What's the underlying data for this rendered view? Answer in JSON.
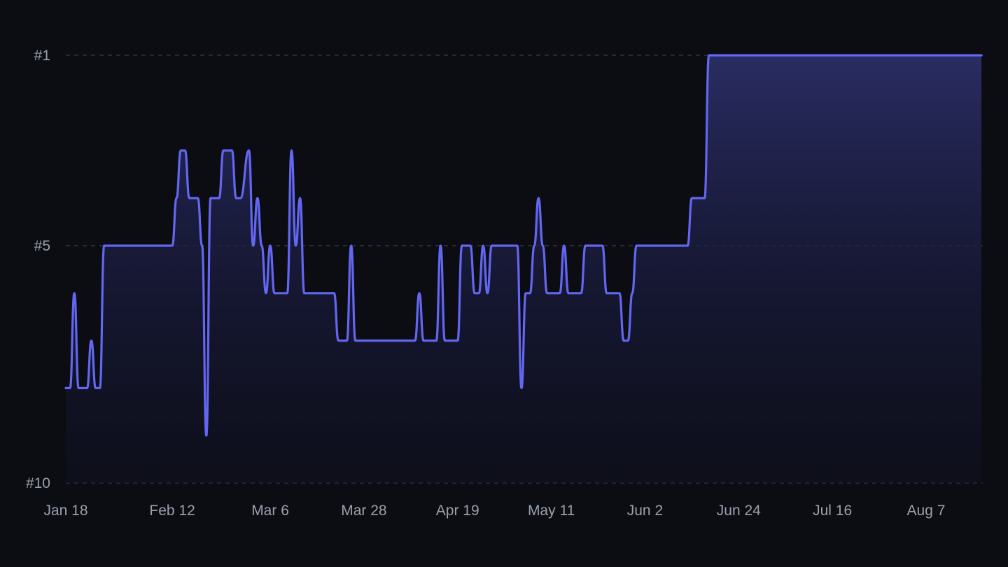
{
  "chart_data": {
    "type": "line",
    "title": "",
    "xlabel": "",
    "ylabel": "",
    "y_scale": "rank (inverted, #1 at top)",
    "ylim": [
      1,
      10
    ],
    "y_ticks": [
      "#1",
      "#5",
      "#10"
    ],
    "y_tick_values": [
      1,
      5,
      10
    ],
    "x_ticks": [
      "Jan 18",
      "Feb 12",
      "Mar 6",
      "Mar 28",
      "Apr 19",
      "May 11",
      "Jun 2",
      "Jun 24",
      "Jul 16",
      "Aug 7"
    ],
    "grid": "horizontal dashed",
    "legend": "none",
    "colors": {
      "line": "#6366f1",
      "fill_top": "#2b2e66",
      "background": "#0b0d13",
      "grid": "#3a3d47",
      "tick_text": "#9aa0ab"
    },
    "series": [
      {
        "points": [
          [
            "Jan 18",
            8
          ],
          [
            "Jan 19",
            8
          ],
          [
            "Jan 20",
            6
          ],
          [
            "Jan 21",
            8
          ],
          [
            "Jan 22",
            8
          ],
          [
            "Jan 23",
            8
          ],
          [
            "Jan 24",
            7
          ],
          [
            "Jan 25",
            8
          ],
          [
            "Jan 26",
            8
          ],
          [
            "Jan 27",
            5
          ],
          [
            "Jan 28",
            5
          ],
          [
            "Jan 29",
            5
          ],
          [
            "Jan 30",
            5
          ],
          [
            "Jan 31",
            5
          ],
          [
            "Feb 1",
            5
          ],
          [
            "Feb 2",
            5
          ],
          [
            "Feb 3",
            5
          ],
          [
            "Feb 4",
            5
          ],
          [
            "Feb 5",
            5
          ],
          [
            "Feb 6",
            5
          ],
          [
            "Feb 7",
            5
          ],
          [
            "Feb 8",
            5
          ],
          [
            "Feb 9",
            5
          ],
          [
            "Feb 10",
            5
          ],
          [
            "Feb 11",
            5
          ],
          [
            "Feb 12",
            5
          ],
          [
            "Feb 13",
            4
          ],
          [
            "Feb 14",
            3
          ],
          [
            "Feb 15",
            3
          ],
          [
            "Feb 16",
            4
          ],
          [
            "Feb 17",
            4
          ],
          [
            "Feb 18",
            4
          ],
          [
            "Feb 19",
            5
          ],
          [
            "Feb 20",
            9
          ],
          [
            "Feb 21",
            4
          ],
          [
            "Feb 22",
            4
          ],
          [
            "Feb 23",
            4
          ],
          [
            "Feb 24",
            3
          ],
          [
            "Feb 25",
            3
          ],
          [
            "Feb 26",
            3
          ],
          [
            "Feb 27",
            4
          ],
          [
            "Feb 28",
            4
          ],
          [
            "Mar 1",
            3
          ],
          [
            "Mar 2",
            5
          ],
          [
            "Mar 3",
            4
          ],
          [
            "Mar 4",
            5
          ],
          [
            "Mar 5",
            6
          ],
          [
            "Mar 6",
            5
          ],
          [
            "Mar 7",
            6
          ],
          [
            "Mar 8",
            6
          ],
          [
            "Mar 9",
            6
          ],
          [
            "Mar 10",
            6
          ],
          [
            "Mar 11",
            3
          ],
          [
            "Mar 12",
            5
          ],
          [
            "Mar 13",
            4
          ],
          [
            "Mar 14",
            6
          ],
          [
            "Mar 15",
            6
          ],
          [
            "Mar 16",
            6
          ],
          [
            "Mar 17",
            6
          ],
          [
            "Mar 18",
            6
          ],
          [
            "Mar 19",
            6
          ],
          [
            "Mar 20",
            6
          ],
          [
            "Mar 21",
            6
          ],
          [
            "Mar 22",
            7
          ],
          [
            "Mar 23",
            7
          ],
          [
            "Mar 24",
            7
          ],
          [
            "Mar 25",
            5
          ],
          [
            "Mar 26",
            7
          ],
          [
            "Mar 27",
            7
          ],
          [
            "Mar 28",
            7
          ],
          [
            "Mar 29",
            7
          ],
          [
            "Mar 30",
            7
          ],
          [
            "Mar 31",
            7
          ],
          [
            "Apr 1",
            7
          ],
          [
            "Apr 2",
            7
          ],
          [
            "Apr 3",
            7
          ],
          [
            "Apr 4",
            7
          ],
          [
            "Apr 5",
            7
          ],
          [
            "Apr 6",
            7
          ],
          [
            "Apr 7",
            7
          ],
          [
            "Apr 8",
            7
          ],
          [
            "Apr 9",
            7
          ],
          [
            "Apr 10",
            6
          ],
          [
            "Apr 11",
            7
          ],
          [
            "Apr 12",
            7
          ],
          [
            "Apr 13",
            7
          ],
          [
            "Apr 14",
            7
          ],
          [
            "Apr 15",
            5
          ],
          [
            "Apr 16",
            7
          ],
          [
            "Apr 17",
            7
          ],
          [
            "Apr 18",
            7
          ],
          [
            "Apr 19",
            7
          ],
          [
            "Apr 20",
            5
          ],
          [
            "Apr 21",
            5
          ],
          [
            "Apr 22",
            5
          ],
          [
            "Apr 23",
            6
          ],
          [
            "Apr 24",
            6
          ],
          [
            "Apr 25",
            5
          ],
          [
            "Apr 26",
            6
          ],
          [
            "Apr 27",
            5
          ],
          [
            "Apr 28",
            5
          ],
          [
            "Apr 29",
            5
          ],
          [
            "Apr 30",
            5
          ],
          [
            "May 1",
            5
          ],
          [
            "May 2",
            5
          ],
          [
            "May 3",
            5
          ],
          [
            "May 4",
            8
          ],
          [
            "May 5",
            6
          ],
          [
            "May 6",
            6
          ],
          [
            "May 7",
            5
          ],
          [
            "May 8",
            4
          ],
          [
            "May 9",
            5
          ],
          [
            "May 10",
            6
          ],
          [
            "May 11",
            6
          ],
          [
            "May 12",
            6
          ],
          [
            "May 13",
            6
          ],
          [
            "May 14",
            5
          ],
          [
            "May 15",
            6
          ],
          [
            "May 16",
            6
          ],
          [
            "May 17",
            6
          ],
          [
            "May 18",
            6
          ],
          [
            "May 19",
            5
          ],
          [
            "May 20",
            5
          ],
          [
            "May 21",
            5
          ],
          [
            "May 22",
            5
          ],
          [
            "May 23",
            5
          ],
          [
            "May 24",
            6
          ],
          [
            "May 25",
            6
          ],
          [
            "May 26",
            6
          ],
          [
            "May 27",
            6
          ],
          [
            "May 28",
            7
          ],
          [
            "May 29",
            7
          ],
          [
            "May 30",
            6
          ],
          [
            "May 31",
            5
          ],
          [
            "Jun 1",
            5
          ],
          [
            "Jun 2",
            5
          ],
          [
            "Jun 3",
            5
          ],
          [
            "Jun 4",
            5
          ],
          [
            "Jun 5",
            5
          ],
          [
            "Jun 6",
            5
          ],
          [
            "Jun 7",
            5
          ],
          [
            "Jun 8",
            5
          ],
          [
            "Jun 9",
            5
          ],
          [
            "Jun 10",
            5
          ],
          [
            "Jun 11",
            5
          ],
          [
            "Jun 12",
            5
          ],
          [
            "Jun 13",
            4
          ],
          [
            "Jun 14",
            4
          ],
          [
            "Jun 15",
            4
          ],
          [
            "Jun 16",
            4
          ],
          [
            "Jun 17",
            1
          ],
          [
            "Jun 24",
            1
          ],
          [
            "Jul 1",
            1
          ],
          [
            "Jul 8",
            1
          ],
          [
            "Jul 16",
            1
          ],
          [
            "Jul 23",
            1
          ],
          [
            "Jul 30",
            1
          ],
          [
            "Aug 7",
            1
          ],
          [
            "Aug 14",
            1
          ],
          [
            "Aug 20",
            1
          ]
        ]
      }
    ]
  }
}
